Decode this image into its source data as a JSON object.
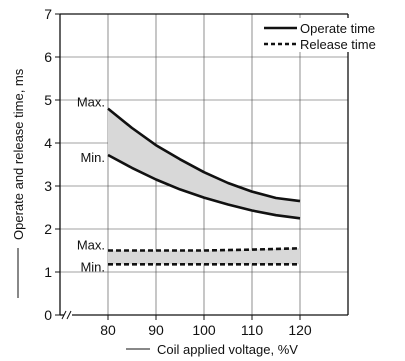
{
  "chart_data": {
    "type": "line",
    "title": "",
    "xlabel": "Coil applied voltage, %V",
    "ylabel": "Operate and release time, ms",
    "xlim": [
      70,
      130
    ],
    "ylim": [
      0,
      7
    ],
    "x_ticks": [
      80,
      90,
      100,
      110,
      120
    ],
    "y_ticks": [
      0,
      1,
      2,
      3,
      4,
      5,
      6,
      7
    ],
    "grid": true,
    "legend_position": "top-right",
    "axis_break": "x-axis near origin",
    "legend": [
      {
        "label": "Operate time",
        "style": "solid"
      },
      {
        "label": "Release time",
        "style": "dashed"
      }
    ],
    "series": [
      {
        "name": "Operate time",
        "bound": "Max.",
        "style": "solid",
        "x": [
          80,
          85,
          90,
          95,
          100,
          105,
          110,
          115,
          120
        ],
        "y": [
          4.8,
          4.35,
          3.95,
          3.62,
          3.32,
          3.07,
          2.87,
          2.72,
          2.65
        ]
      },
      {
        "name": "Operate time",
        "bound": "Min.",
        "style": "solid",
        "x": [
          80,
          85,
          90,
          95,
          100,
          105,
          110,
          115,
          120
        ],
        "y": [
          3.72,
          3.42,
          3.15,
          2.92,
          2.73,
          2.57,
          2.43,
          2.32,
          2.25
        ]
      },
      {
        "name": "Release time",
        "bound": "Max.",
        "style": "dashed",
        "x": [
          80,
          90,
          100,
          110,
          120
        ],
        "y": [
          1.5,
          1.5,
          1.5,
          1.52,
          1.55
        ]
      },
      {
        "name": "Release time",
        "bound": "Min.",
        "style": "dashed",
        "x": [
          80,
          90,
          100,
          110,
          120
        ],
        "y": [
          1.18,
          1.18,
          1.18,
          1.18,
          1.18
        ]
      }
    ],
    "annotations": [
      {
        "text": "Max.",
        "x": 80,
        "y": 4.8
      },
      {
        "text": "Min.",
        "x": 80,
        "y": 3.72
      },
      {
        "text": "Max.",
        "x": 80,
        "y": 1.5
      },
      {
        "text": "Min.",
        "x": 80,
        "y": 1.18
      }
    ],
    "colors": {
      "line": "#111111",
      "band": "#d8d8d8",
      "grid": "#444444"
    }
  }
}
